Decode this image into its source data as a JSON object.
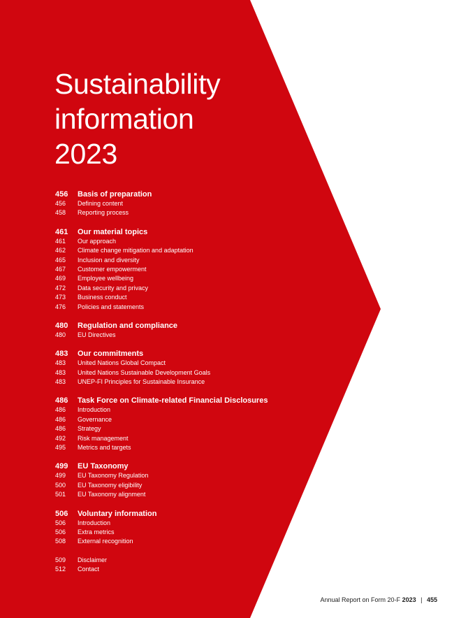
{
  "colors": {
    "brand_red": "#D0060F",
    "text_on_red": "#FFFFFF",
    "footer_text": "#222222"
  },
  "title_lines": [
    "Sustainability",
    "information",
    "2023"
  ],
  "sections": [
    {
      "heading": {
        "page": "456",
        "label": "Basis of preparation"
      },
      "items": [
        {
          "page": "456",
          "label": "Defining content"
        },
        {
          "page": "458",
          "label": "Reporting process"
        }
      ]
    },
    {
      "heading": {
        "page": "461",
        "label": "Our material topics"
      },
      "items": [
        {
          "page": "461",
          "label": "Our approach"
        },
        {
          "page": "462",
          "label": "Climate change mitigation and adaptation"
        },
        {
          "page": "465",
          "label": "Inclusion and diversity"
        },
        {
          "page": "467",
          "label": "Customer empowerment"
        },
        {
          "page": "469",
          "label": "Employee wellbeing"
        },
        {
          "page": "472",
          "label": "Data security and privacy"
        },
        {
          "page": "473",
          "label": "Business conduct"
        },
        {
          "page": "476",
          "label": "Policies and statements"
        }
      ]
    },
    {
      "heading": {
        "page": "480",
        "label": "Regulation and compliance"
      },
      "items": [
        {
          "page": "480",
          "label": "EU Directives"
        }
      ]
    },
    {
      "heading": {
        "page": "483",
        "label": "Our commitments"
      },
      "items": [
        {
          "page": "483",
          "label": "United Nations Global Compact"
        },
        {
          "page": "483",
          "label": "United Nations Sustainable Development Goals"
        },
        {
          "page": "483",
          "label": "UNEP-FI Principles for Sustainable Insurance"
        }
      ]
    },
    {
      "heading": {
        "page": "486",
        "label": "Task Force on Climate-related Financial Disclosures"
      },
      "items": [
        {
          "page": "486",
          "label": "Introduction"
        },
        {
          "page": "486",
          "label": "Governance"
        },
        {
          "page": "486",
          "label": "Strategy"
        },
        {
          "page": "492",
          "label": "Risk management"
        },
        {
          "page": "495",
          "label": "Metrics and targets"
        }
      ]
    },
    {
      "heading": {
        "page": "499",
        "label": "EU Taxonomy"
      },
      "items": [
        {
          "page": "499",
          "label": "EU Taxonomy Regulation"
        },
        {
          "page": "500",
          "label": "EU Taxonomy eligibility"
        },
        {
          "page": "501",
          "label": "EU Taxonomy alignment"
        }
      ]
    },
    {
      "heading": {
        "page": "506",
        "label": "Voluntary information"
      },
      "items": [
        {
          "page": "506",
          "label": "Introduction"
        },
        {
          "page": "506",
          "label": "Extra metrics"
        },
        {
          "page": "508",
          "label": "External recognition"
        }
      ]
    },
    {
      "heading": null,
      "items": [
        {
          "page": "509",
          "label": "Disclaimer"
        },
        {
          "page": "512",
          "label": "Contact"
        }
      ]
    }
  ],
  "footer": {
    "report_label": "Annual Report on Form 20-F",
    "year": "2023",
    "separator": "|",
    "page_number": "455"
  }
}
